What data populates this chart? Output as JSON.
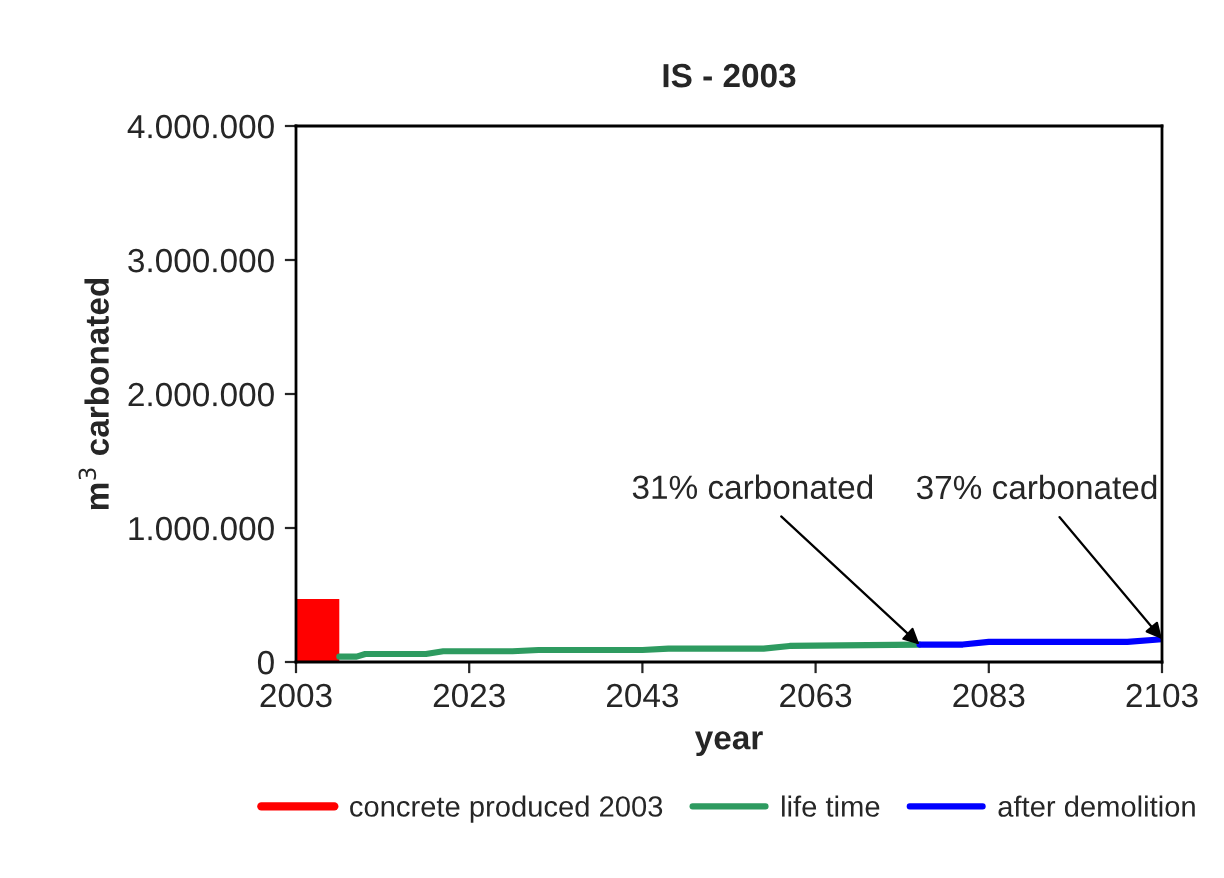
{
  "chart_data": {
    "type": "line",
    "title": "IS - 2003",
    "xlabel": "year",
    "ylabel": "m$^{3}$ carbonated",
    "series": [
      {
        "name": "concrete produced 2003",
        "type": "area",
        "color": "#ff0000",
        "x": [
          2003,
          2008
        ],
        "values": [
          470000,
          470000
        ]
      },
      {
        "name": "life time",
        "color": "#2e9b60",
        "x": [
          2008,
          2010,
          2011,
          2018,
          2020,
          2028,
          2031,
          2043,
          2046,
          2057,
          2060,
          2075
        ],
        "values": [
          40000,
          40000,
          60000,
          60000,
          80000,
          80000,
          90000,
          90000,
          100000,
          100000,
          120000,
          130000
        ]
      },
      {
        "name": "after demolition",
        "color": "#0000ff",
        "x": [
          2075,
          2080,
          2083,
          2099,
          2103
        ],
        "values": [
          130000,
          130000,
          150000,
          150000,
          170000
        ]
      }
    ],
    "annotations": [
      {
        "text": "31% carbonated",
        "x": 2075,
        "y": 130000
      },
      {
        "text": "37% carbonated",
        "x": 2103,
        "y": 170000
      }
    ],
    "xlim": [
      2003,
      2103
    ],
    "xticks": [
      2003,
      2023,
      2043,
      2063,
      2083,
      2103
    ],
    "ylim": [
      0,
      4000000
    ],
    "yticks": [
      0,
      {
        "value": 1000000,
        "label": "1.000.000"
      },
      {
        "value": 2000000,
        "label": "2.000.000"
      },
      {
        "value": 3000000,
        "label": "3.000.000"
      },
      {
        "value": 4000000,
        "label": "4.000.000"
      }
    ],
    "grid": false,
    "legend": "bottom"
  }
}
